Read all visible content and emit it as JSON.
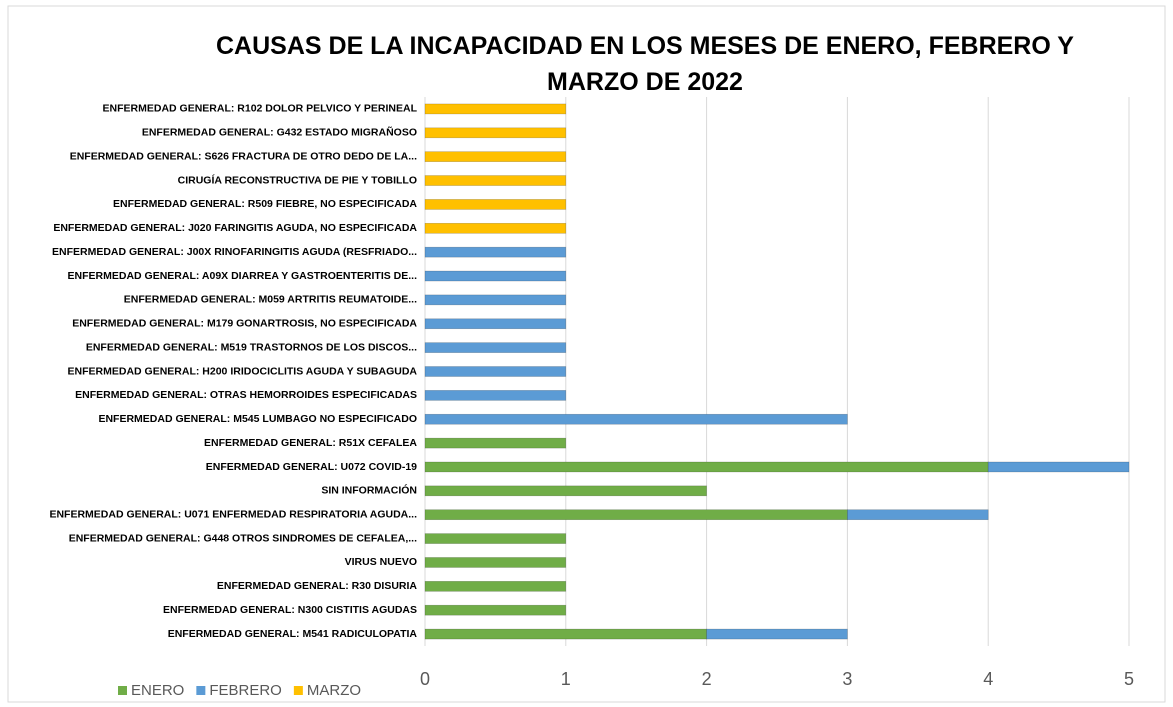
{
  "chart_data": {
    "type": "bar",
    "orientation": "horizontal",
    "stacked": true,
    "title": "CAUSAS DE LA INCAPACIDAD EN LOS MESES DE ENERO, FEBRERO Y MARZO DE 2022",
    "categories": [
      "ENFERMEDAD GENERAL: R102 DOLOR PELVICO Y PERINEAL",
      "ENFERMEDAD GENERAL: G432 ESTADO MIGRAÑOSO",
      "ENFERMEDAD GENERAL: S626 FRACTURA DE OTRO DEDO DE LA...",
      "CIRUGÍA RECONSTRUCTIVA DE PIE Y TOBILLO",
      "ENFERMEDAD GENERAL: R509 FIEBRE, NO ESPECIFICADA",
      "ENFERMEDAD GENERAL: J020 FARINGITIS AGUDA, NO ESPECIFICADA",
      "ENFERMEDAD GENERAL: J00X RINOFARINGITIS AGUDA (RESFRIADO...",
      "ENFERMEDAD GENERAL: A09X DIARREA Y GASTROENTERITIS DE...",
      "ENFERMEDAD GENERAL: M059 ARTRITIS REUMATOIDE...",
      "ENFERMEDAD GENERAL: M179 GONARTROSIS, NO ESPECIFICADA",
      "ENFERMEDAD GENERAL: M519 TRASTORNOS DE LOS DISCOS...",
      "ENFERMEDAD GENERAL: H200 IRIDOCICLITIS AGUDA Y SUBAGUDA",
      "ENFERMEDAD GENERAL: OTRAS HEMORROIDES ESPECIFICADAS",
      "ENFERMEDAD GENERAL: M545 LUMBAGO NO ESPECIFICADO",
      "ENFERMEDAD GENERAL: R51X CEFALEA",
      "ENFERMEDAD GENERAL: U072 COVID-19",
      "SIN INFORMACIÓN",
      "ENFERMEDAD GENERAL: U071 ENFERMEDAD RESPIRATORIA AGUDA...",
      "ENFERMEDAD GENERAL: G448 OTROS SINDROMES DE CEFALEA,...",
      "VIRUS NUEVO",
      "ENFERMEDAD GENERAL: R30 DISURIA",
      "ENFERMEDAD GENERAL: N300 CISTITIS AGUDAS",
      "ENFERMEDAD GENERAL: M541 RADICULOPATIA"
    ],
    "series": [
      {
        "name": "ENERO",
        "color": "#70ad47",
        "values": [
          0,
          0,
          0,
          0,
          0,
          0,
          0,
          0,
          0,
          0,
          0,
          0,
          0,
          0,
          1,
          4,
          2,
          3,
          1,
          1,
          1,
          1,
          2
        ]
      },
      {
        "name": "FEBRERO",
        "color": "#5b9bd5",
        "values": [
          0,
          0,
          0,
          0,
          0,
          0,
          1,
          1,
          1,
          1,
          1,
          1,
          1,
          3,
          0,
          1,
          0,
          1,
          0,
          0,
          0,
          0,
          1
        ]
      },
      {
        "name": "MARZO",
        "color": "#ffc000",
        "values": [
          1,
          1,
          1,
          1,
          1,
          1,
          0,
          0,
          0,
          0,
          0,
          0,
          0,
          0,
          0,
          0,
          0,
          0,
          0,
          0,
          0,
          0,
          0
        ]
      }
    ],
    "xlim": [
      0,
      5
    ],
    "xticks": [
      0,
      1,
      2,
      3,
      4,
      5
    ],
    "grid": true,
    "legend": "bottom-left"
  }
}
